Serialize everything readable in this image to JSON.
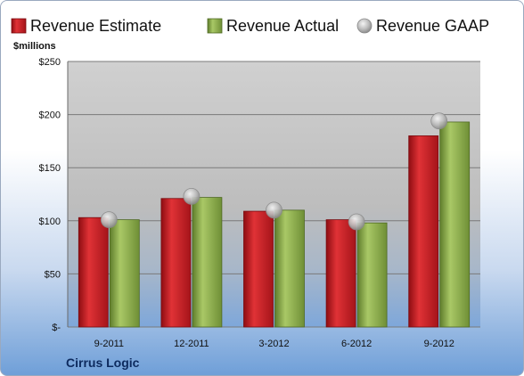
{
  "company": "Cirrus Logic",
  "chart_data": {
    "type": "bar",
    "unit_label": "$millions",
    "categories": [
      "9-2011",
      "12-2011",
      "3-2012",
      "6-2012",
      "9-2012"
    ],
    "series": [
      {
        "name": "Revenue Estimate",
        "kind": "bar",
        "color": "#c8161d",
        "values": [
          103,
          121,
          109,
          101,
          180
        ]
      },
      {
        "name": "Revenue Actual",
        "kind": "bar",
        "color": "#8fb04a",
        "values": [
          101,
          122,
          110,
          98,
          193
        ]
      },
      {
        "name": "Revenue GAAP",
        "kind": "marker",
        "color": "#b8b8b8",
        "values": [
          101,
          123,
          110,
          99,
          194
        ]
      }
    ],
    "yticks": [
      0,
      50,
      100,
      150,
      200,
      250
    ],
    "ytick_labels": [
      "$-",
      "$50",
      "$100",
      "$150",
      "$200",
      "$250"
    ],
    "ylim": [
      0,
      250
    ],
    "grid": true,
    "legend_position": "top"
  }
}
